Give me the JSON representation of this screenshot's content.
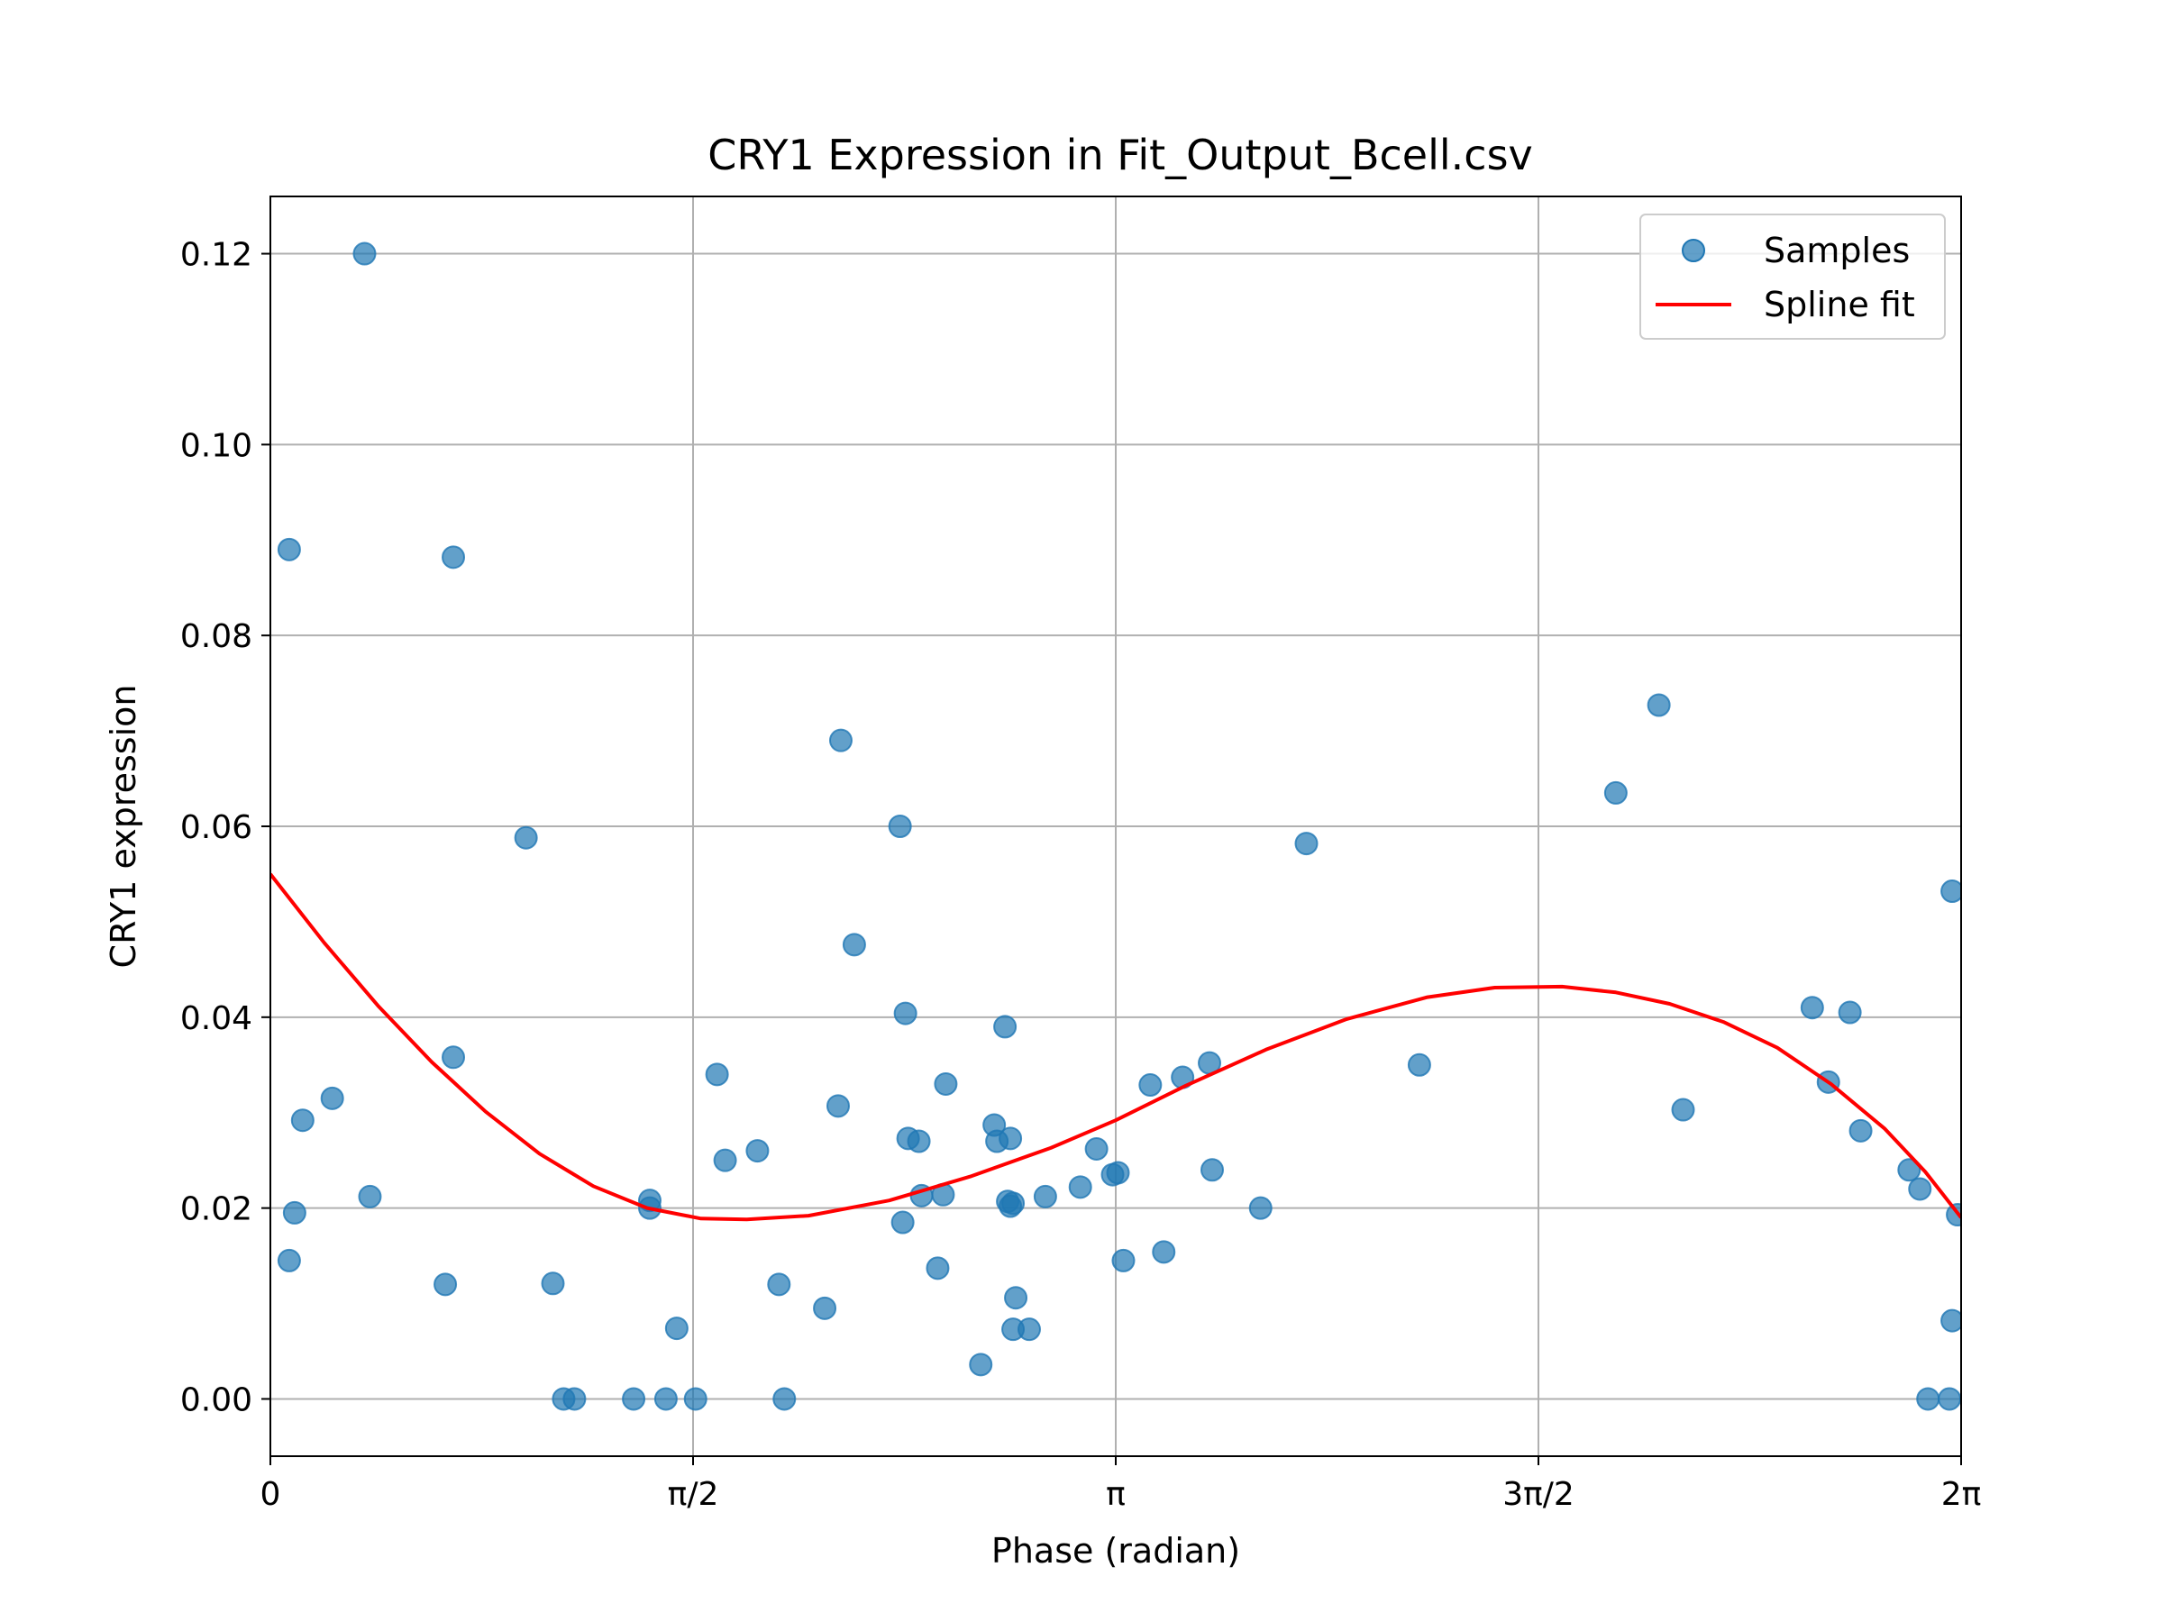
{
  "chart_data": {
    "type": "scatter",
    "title": "CRY1 Expression in Fit_Output_Bcell.csv",
    "xlabel": "Phase (radian)",
    "ylabel": "CRY1 expression",
    "xlim": [
      0,
      6.2832
    ],
    "ylim": [
      -0.006,
      0.126
    ],
    "grid": true,
    "legend_position": "top-right",
    "x_ticks": [
      {
        "value": 0,
        "label": "0"
      },
      {
        "value": 1.5708,
        "label": "π/2"
      },
      {
        "value": 3.1416,
        "label": "π"
      },
      {
        "value": 4.7124,
        "label": "3π/2"
      },
      {
        "value": 6.2832,
        "label": "2π"
      }
    ],
    "y_ticks": [
      {
        "value": 0.0,
        "label": "0.00"
      },
      {
        "value": 0.02,
        "label": "0.02"
      },
      {
        "value": 0.04,
        "label": "0.04"
      },
      {
        "value": 0.06,
        "label": "0.06"
      },
      {
        "value": 0.08,
        "label": "0.08"
      },
      {
        "value": 0.1,
        "label": "0.10"
      },
      {
        "value": 0.12,
        "label": "0.12"
      }
    ],
    "series": [
      {
        "name": "Samples",
        "kind": "scatter",
        "color": "#1f77b4",
        "points": [
          [
            0.07,
            0.089
          ],
          [
            0.07,
            0.0145
          ],
          [
            0.09,
            0.0195
          ],
          [
            0.12,
            0.0292
          ],
          [
            0.23,
            0.0315
          ],
          [
            0.35,
            0.12
          ],
          [
            0.37,
            0.0212
          ],
          [
            0.65,
            0.012
          ],
          [
            0.68,
            0.0882
          ],
          [
            0.68,
            0.0358
          ],
          [
            0.95,
            0.0588
          ],
          [
            1.05,
            0.0121
          ],
          [
            1.09,
            0.0
          ],
          [
            1.13,
            0.0
          ],
          [
            1.35,
            0.0
          ],
          [
            1.41,
            0.0208
          ],
          [
            1.41,
            0.02
          ],
          [
            1.47,
            0.0
          ],
          [
            1.51,
            0.0074
          ],
          [
            1.58,
            0.0
          ],
          [
            1.66,
            0.034
          ],
          [
            1.69,
            0.025
          ],
          [
            1.81,
            0.026
          ],
          [
            1.89,
            0.012
          ],
          [
            1.91,
            0.0
          ],
          [
            2.06,
            0.0095
          ],
          [
            2.11,
            0.0307
          ],
          [
            2.12,
            0.069
          ],
          [
            2.17,
            0.0476
          ],
          [
            2.34,
            0.06
          ],
          [
            2.35,
            0.0185
          ],
          [
            2.36,
            0.0404
          ],
          [
            2.37,
            0.0273
          ],
          [
            2.41,
            0.027
          ],
          [
            2.42,
            0.0213
          ],
          [
            2.48,
            0.0137
          ],
          [
            2.5,
            0.0214
          ],
          [
            2.51,
            0.033
          ],
          [
            2.64,
            0.0036
          ],
          [
            2.69,
            0.0287
          ],
          [
            2.7,
            0.027
          ],
          [
            2.73,
            0.039
          ],
          [
            2.74,
            0.0207
          ],
          [
            2.75,
            0.0202
          ],
          [
            2.75,
            0.0273
          ],
          [
            2.76,
            0.0205
          ],
          [
            2.76,
            0.0073
          ],
          [
            2.77,
            0.0106
          ],
          [
            2.82,
            0.0073
          ],
          [
            2.88,
            0.0212
          ],
          [
            3.01,
            0.0222
          ],
          [
            3.07,
            0.0262
          ],
          [
            3.13,
            0.0235
          ],
          [
            3.15,
            0.0237
          ],
          [
            3.17,
            0.0145
          ],
          [
            3.27,
            0.0329
          ],
          [
            3.32,
            0.0154
          ],
          [
            3.39,
            0.0337
          ],
          [
            3.49,
            0.0352
          ],
          [
            3.5,
            0.024
          ],
          [
            3.68,
            0.02
          ],
          [
            3.85,
            0.0582
          ],
          [
            4.27,
            0.035
          ],
          [
            5.0,
            0.0635
          ],
          [
            5.16,
            0.0727
          ],
          [
            5.25,
            0.0303
          ],
          [
            5.73,
            0.041
          ],
          [
            5.79,
            0.0332
          ],
          [
            5.87,
            0.0405
          ],
          [
            5.91,
            0.0281
          ],
          [
            6.09,
            0.024
          ],
          [
            6.13,
            0.022
          ],
          [
            6.16,
            0.0
          ],
          [
            6.24,
            0.0
          ],
          [
            6.25,
            0.0532
          ],
          [
            6.25,
            0.0082
          ],
          [
            6.27,
            0.0193
          ]
        ]
      },
      {
        "name": "Spline fit",
        "kind": "line",
        "color": "#ff0000",
        "points": [
          [
            0.0,
            0.055
          ],
          [
            0.2,
            0.0478
          ],
          [
            0.4,
            0.0412
          ],
          [
            0.6,
            0.0353
          ],
          [
            0.8,
            0.0301
          ],
          [
            1.0,
            0.0257
          ],
          [
            1.2,
            0.0223
          ],
          [
            1.4,
            0.02
          ],
          [
            1.6,
            0.0189
          ],
          [
            1.77,
            0.0188
          ],
          [
            2.0,
            0.0192
          ],
          [
            2.3,
            0.0208
          ],
          [
            2.6,
            0.0233
          ],
          [
            2.9,
            0.0263
          ],
          [
            3.1416,
            0.0292
          ],
          [
            3.4,
            0.0328
          ],
          [
            3.7,
            0.0366
          ],
          [
            4.0,
            0.0398
          ],
          [
            4.3,
            0.0421
          ],
          [
            4.55,
            0.0431
          ],
          [
            4.8,
            0.0432
          ],
          [
            5.0,
            0.0426
          ],
          [
            5.2,
            0.0414
          ],
          [
            5.4,
            0.0395
          ],
          [
            5.6,
            0.0368
          ],
          [
            5.8,
            0.033
          ],
          [
            6.0,
            0.0283
          ],
          [
            6.15,
            0.0238
          ],
          [
            6.2832,
            0.019
          ]
        ]
      }
    ]
  }
}
